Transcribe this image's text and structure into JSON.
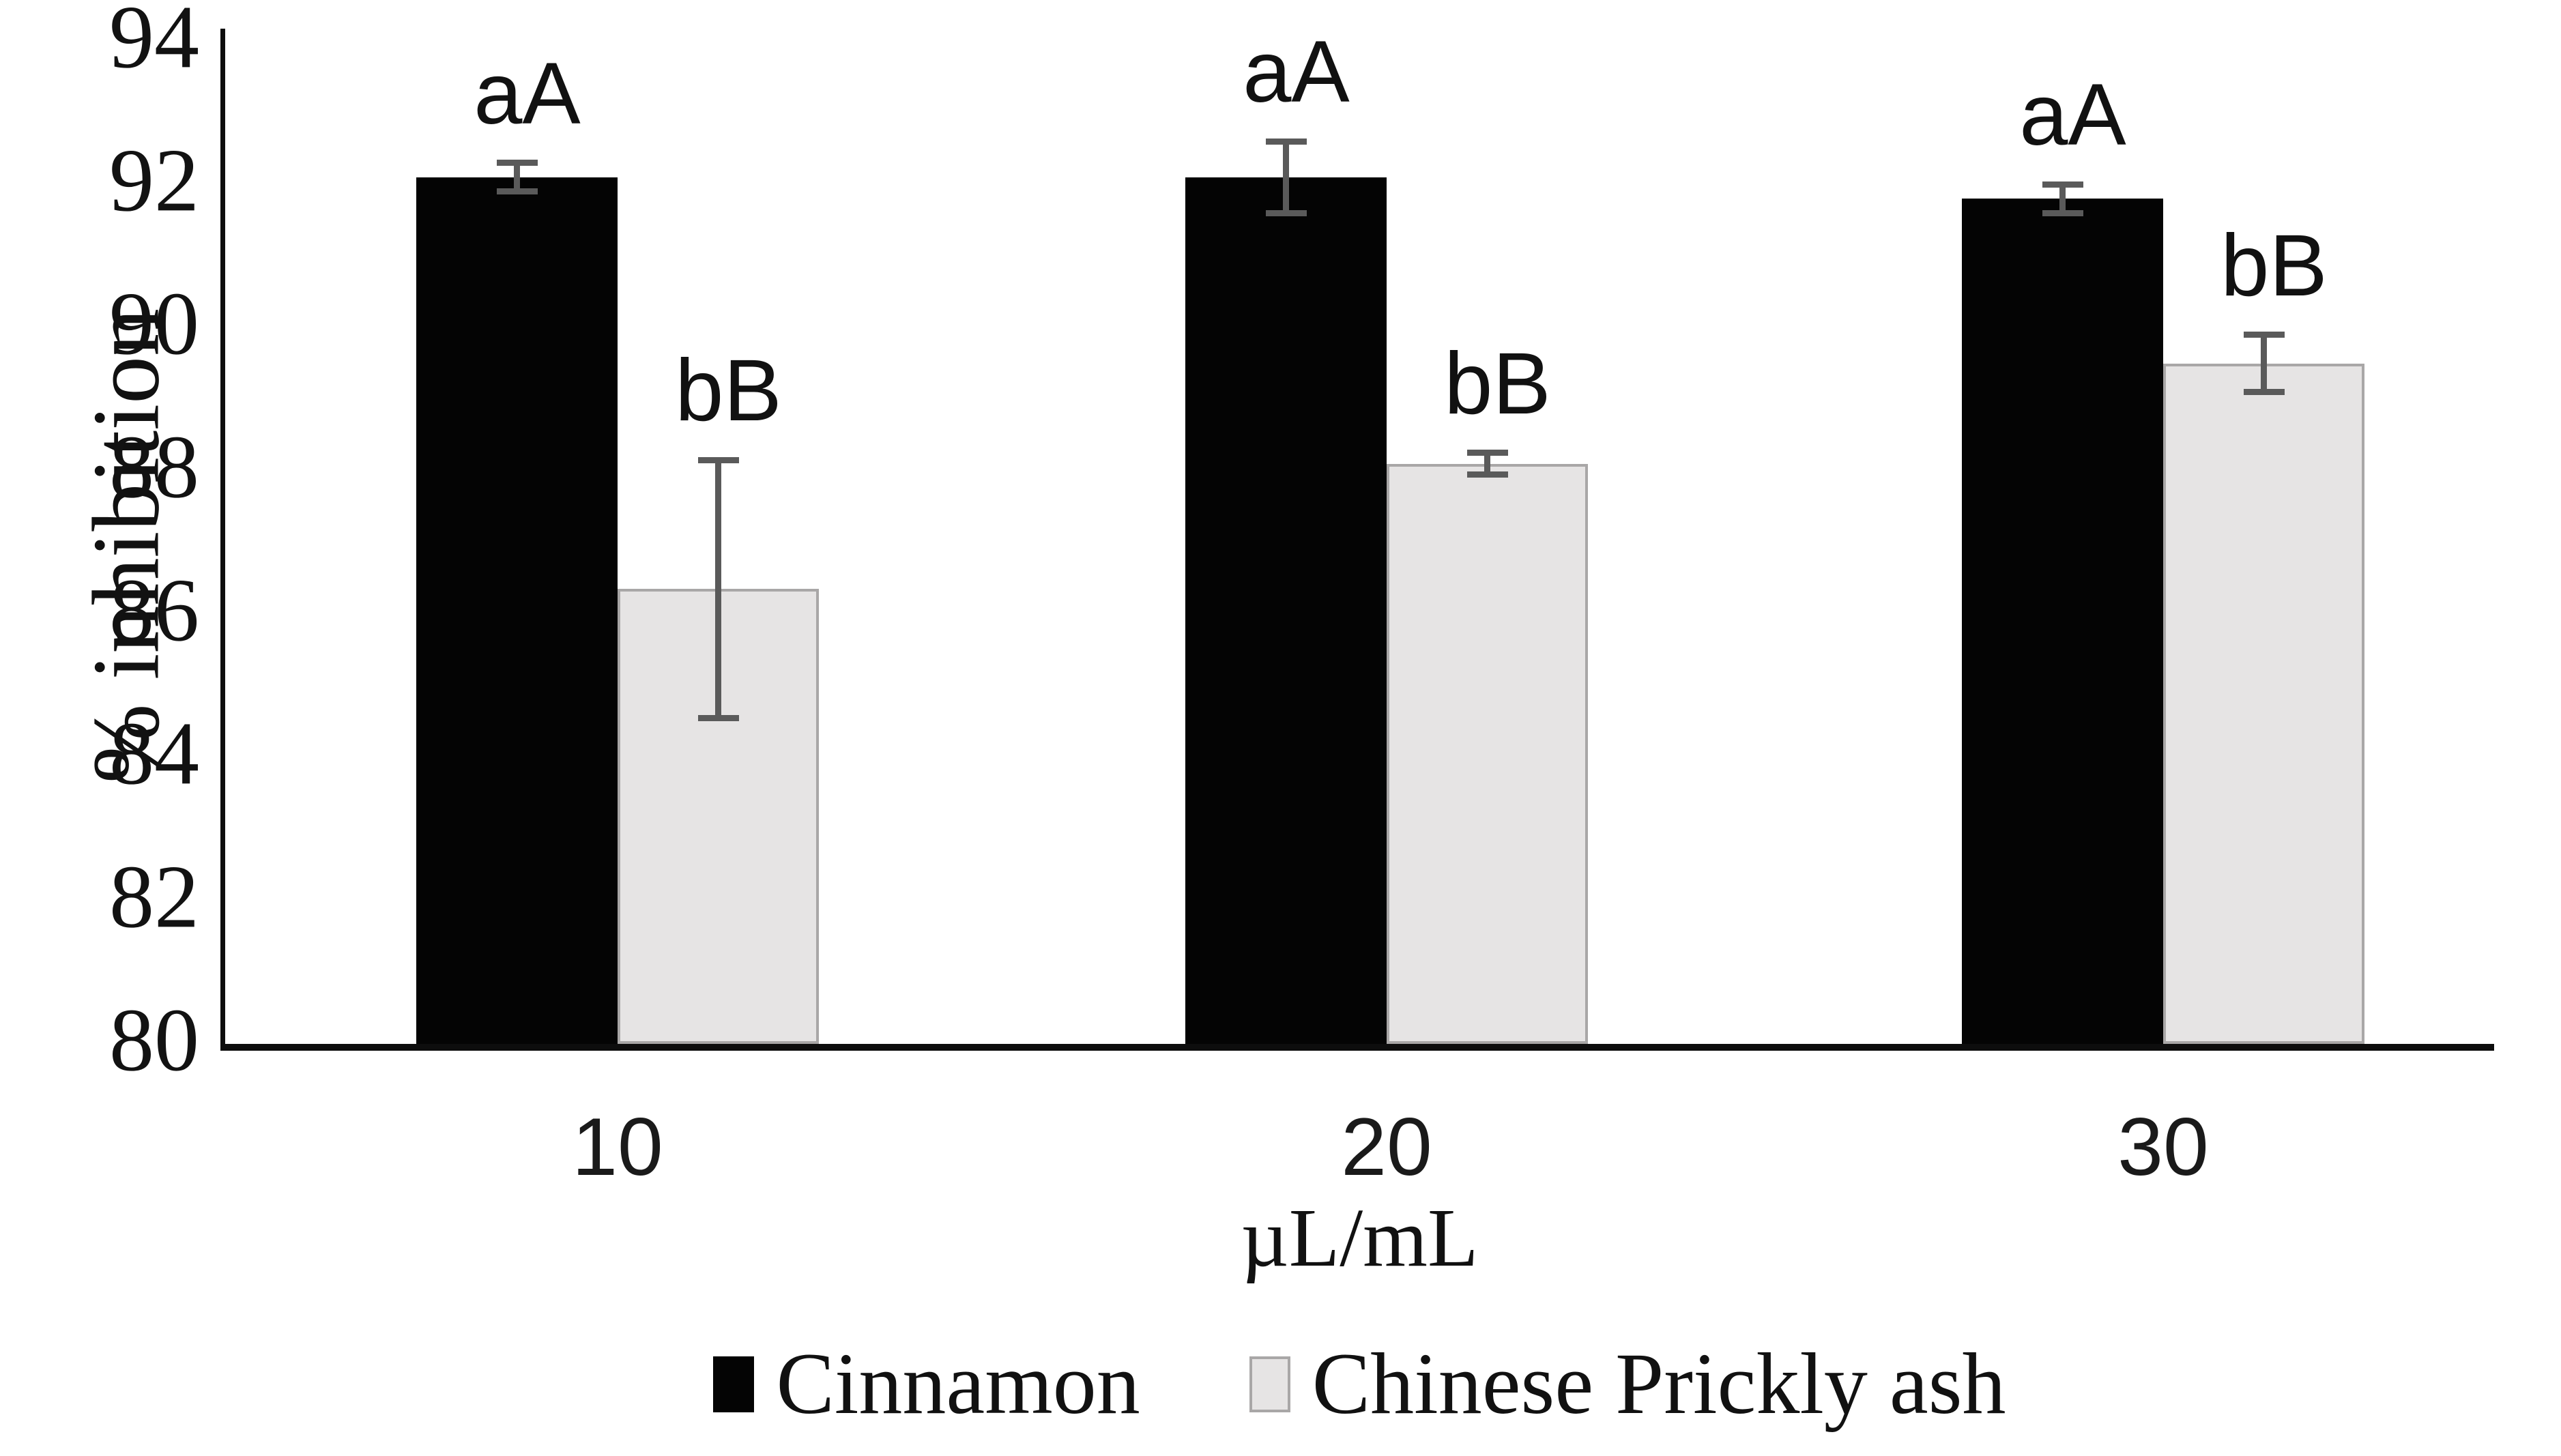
{
  "chart_data": {
    "type": "bar",
    "title": "",
    "xlabel": "µL/mL",
    "ylabel": "% inhibition",
    "ylim": [
      80,
      94
    ],
    "yticks": [
      "80",
      "82",
      "84",
      "86",
      "88",
      "90",
      "92",
      "94"
    ],
    "ytick_values": [
      80,
      82,
      84,
      86,
      88,
      90,
      92,
      94
    ],
    "categories": [
      "10",
      "20",
      "30"
    ],
    "series": [
      {
        "name": "Cinnamon",
        "fill": "#040404",
        "border": "#040404",
        "values": [
          92.1,
          92.1,
          91.8
        ],
        "errors": [
          0.2,
          0.5,
          0.2
        ],
        "point_labels": [
          "aA",
          "aA",
          "aA"
        ]
      },
      {
        "name": "Chinese Prickly ash",
        "fill": "#e6e4e4",
        "border": "#a9a7a7",
        "values": [
          86.35,
          88.1,
          89.5
        ],
        "errors": [
          1.8,
          0.15,
          0.4
        ],
        "point_labels": [
          "bB",
          "bB",
          "bB"
        ]
      }
    ],
    "grid": false,
    "legend_position": "bottom",
    "error_bar_color": "#5a5a5a",
    "axis_color": "#0d0d0d"
  }
}
